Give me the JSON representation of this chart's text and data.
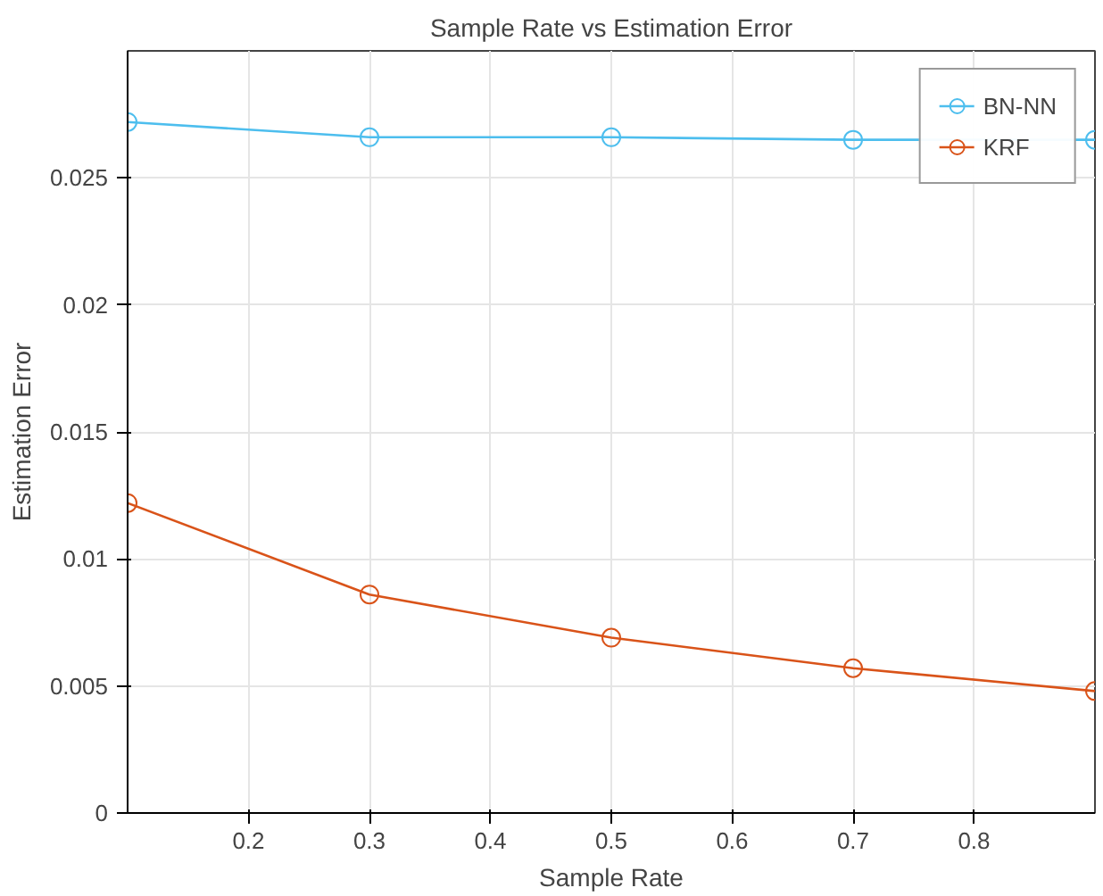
{
  "chart_data": {
    "type": "line",
    "title": "Sample Rate vs Estimation Error",
    "xlabel": "Sample Rate",
    "ylabel": "Estimation Error",
    "x": [
      0.1,
      0.3,
      0.5,
      0.7,
      0.9
    ],
    "series": [
      {
        "name": "BN-NN",
        "color": "#4dbeee",
        "values": [
          0.0272,
          0.0266,
          0.0266,
          0.0265,
          0.0265
        ]
      },
      {
        "name": "KRF",
        "color": "#d95319",
        "values": [
          0.0122,
          0.0086,
          0.0069,
          0.0057,
          0.0048
        ]
      }
    ],
    "xlim": [
      0.1,
      0.9
    ],
    "xticks": [
      0.2,
      0.3,
      0.4,
      0.5,
      0.6,
      0.7,
      0.8
    ],
    "ylim": [
      0,
      0.03
    ],
    "yticks": [
      0,
      0.005,
      0.01,
      0.015,
      0.02,
      0.025
    ],
    "grid": true,
    "legend": "top right",
    "marker": "circle",
    "line_style": "solid"
  }
}
